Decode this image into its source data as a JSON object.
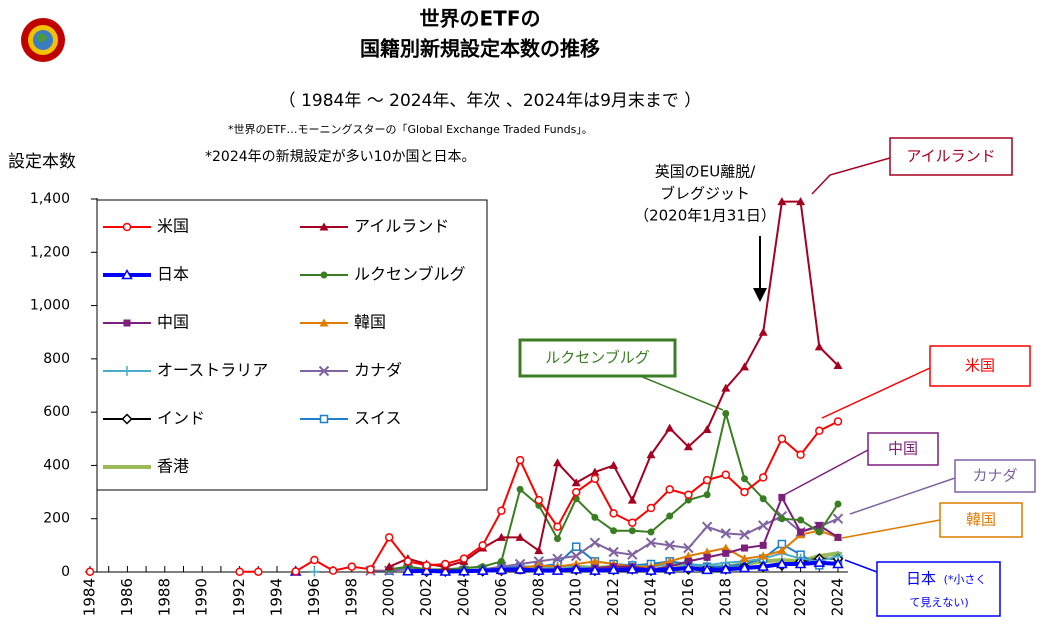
{
  "chart_data": {
    "type": "line",
    "title_lines": [
      "世界のETFの",
      "国籍別新規設定本数の推移"
    ],
    "subtitle": "（ 1984年 ～ 2024年、年次 、2024年は9月末まで ）",
    "notes": [
      "*世界のETF…モーニングスターの「Global Exchange Traded Funds」。",
      "*2024年の新規設定が多い10か国と日本。"
    ],
    "y_label": "設定本数",
    "categories": [
      "1984",
      null,
      "1986",
      null,
      "1988",
      null,
      "1990",
      null,
      "1992",
      null,
      "1994",
      null,
      "1996",
      null,
      "1998",
      null,
      "2000",
      null,
      "2002",
      null,
      "2004",
      null,
      "2006",
      null,
      "2008",
      null,
      "2010",
      null,
      "2012",
      null,
      "2014",
      null,
      "2016",
      null,
      "2018",
      null,
      "2020",
      null,
      "2022",
      null,
      "2024"
    ],
    "ylim": [
      0,
      1400
    ],
    "yticks": [
      0,
      200,
      400,
      600,
      800,
      {
        "value": 1000,
        "label": "1,000"
      },
      {
        "value": 1200,
        "label": "1,200"
      },
      {
        "value": 1400,
        "label": "1,400"
      }
    ],
    "series": [
      {
        "name": "米国",
        "color": "#ff0000",
        "marker": "circle-open",
        "values": [
          1,
          null,
          null,
          null,
          null,
          null,
          null,
          null,
          1,
          1,
          null,
          2,
          45,
          5,
          20,
          10,
          130,
          40,
          25,
          30,
          50,
          100,
          230,
          420,
          270,
          170,
          300,
          350,
          220,
          185,
          240,
          310,
          290,
          345,
          365,
          300,
          355,
          500,
          440,
          530,
          565
        ]
      },
      {
        "name": "アイルランド",
        "color": "#a50021",
        "marker": "triangle",
        "values": [
          null,
          null,
          null,
          null,
          null,
          null,
          null,
          null,
          null,
          null,
          null,
          null,
          null,
          null,
          null,
          null,
          20,
          50,
          30,
          20,
          40,
          90,
          130,
          130,
          80,
          410,
          335,
          375,
          400,
          270,
          440,
          540,
          470,
          535,
          690,
          770,
          900,
          1390,
          1390,
          845,
          775
        ]
      },
      {
        "name": "日本",
        "color": "#0000ff",
        "marker": "triangle-open",
        "width": 4,
        "values": [
          null,
          null,
          null,
          null,
          null,
          null,
          null,
          null,
          null,
          null,
          null,
          2,
          null,
          null,
          null,
          null,
          null,
          3,
          4,
          2,
          3,
          5,
          8,
          10,
          5,
          5,
          10,
          5,
          8,
          10,
          5,
          10,
          15,
          8,
          10,
          15,
          20,
          30,
          30,
          35,
          30
        ]
      },
      {
        "name": "ルクセンブルグ",
        "color": "#3a7d22",
        "marker": "circle",
        "values": [
          null,
          null,
          null,
          null,
          null,
          null,
          null,
          null,
          null,
          null,
          null,
          null,
          null,
          null,
          null,
          null,
          10,
          20,
          10,
          10,
          15,
          20,
          40,
          310,
          250,
          125,
          275,
          205,
          155,
          155,
          150,
          210,
          270,
          290,
          595,
          350,
          275,
          200,
          195,
          150,
          255
        ]
      },
      {
        "name": "中国",
        "color": "#7b1f7b",
        "marker": "square",
        "values": [
          null,
          null,
          null,
          null,
          null,
          null,
          null,
          null,
          null,
          null,
          null,
          null,
          null,
          null,
          null,
          null,
          null,
          null,
          null,
          null,
          1,
          2,
          3,
          5,
          10,
          10,
          10,
          15,
          20,
          20,
          10,
          20,
          40,
          55,
          70,
          90,
          100,
          280,
          150,
          175,
          130
        ]
      },
      {
        "name": "韓国",
        "color": "#e07b00",
        "marker": "triangle",
        "values": [
          null,
          null,
          null,
          null,
          null,
          null,
          null,
          null,
          null,
          null,
          null,
          null,
          null,
          null,
          null,
          null,
          null,
          null,
          5,
          5,
          2,
          10,
          10,
          15,
          25,
          20,
          30,
          40,
          30,
          20,
          20,
          40,
          60,
          75,
          90,
          50,
          60,
          80,
          140,
          155,
          130
        ]
      },
      {
        "name": "オーストラリア",
        "color": "#4bacc6",
        "marker": "plus",
        "values": [
          null,
          null,
          null,
          null,
          null,
          null,
          null,
          null,
          null,
          null,
          null,
          null,
          2,
          null,
          null,
          null,
          null,
          5,
          5,
          5,
          5,
          10,
          10,
          10,
          10,
          20,
          20,
          15,
          20,
          25,
          20,
          30,
          30,
          25,
          35,
          40,
          50,
          70,
          50,
          40,
          60
        ]
      },
      {
        "name": "カナダ",
        "color": "#8064a2",
        "marker": "x",
        "values": [
          null,
          null,
          null,
          null,
          null,
          null,
          null,
          null,
          null,
          null,
          null,
          null,
          null,
          null,
          null,
          5,
          5,
          10,
          10,
          5,
          5,
          10,
          20,
          30,
          40,
          50,
          60,
          110,
          75,
          65,
          110,
          100,
          90,
          170,
          145,
          140,
          175,
          210,
          150,
          170,
          200
        ]
      },
      {
        "name": "インド",
        "color": "#000000",
        "marker": "diamond",
        "values": [
          null,
          null,
          null,
          null,
          null,
          null,
          null,
          null,
          null,
          null,
          null,
          null,
          null,
          null,
          null,
          null,
          null,
          null,
          1,
          2,
          2,
          3,
          5,
          10,
          5,
          10,
          8,
          5,
          8,
          10,
          5,
          8,
          10,
          15,
          10,
          20,
          20,
          25,
          40,
          50,
          50
        ]
      },
      {
        "name": "スイス",
        "color": "#1f7ec8",
        "marker": "square-open",
        "values": [
          null,
          null,
          null,
          null,
          null,
          null,
          null,
          null,
          null,
          null,
          null,
          null,
          null,
          null,
          null,
          null,
          5,
          20,
          10,
          5,
          5,
          10,
          15,
          20,
          20,
          30,
          95,
          40,
          30,
          25,
          30,
          40,
          30,
          20,
          20,
          30,
          50,
          105,
          65,
          25,
          40
        ]
      },
      {
        "name": "香港",
        "color": "#9bbb59",
        "marker": "none",
        "width": 4,
        "values": [
          null,
          null,
          null,
          null,
          null,
          null,
          null,
          null,
          null,
          null,
          null,
          null,
          null,
          null,
          null,
          null,
          null,
          5,
          5,
          3,
          5,
          5,
          10,
          10,
          10,
          20,
          20,
          15,
          20,
          20,
          25,
          30,
          20,
          15,
          20,
          30,
          40,
          45,
          40,
          60,
          70
        ]
      }
    ],
    "annotations": [
      {
        "text": "アイルランド",
        "color": "#a50021"
      },
      {
        "text": "米国",
        "color": "#ff0000"
      },
      {
        "text": "ルクセンブルグ",
        "color": "#3a7d22"
      },
      {
        "text": "中国",
        "color": "#7b1f7b"
      },
      {
        "text": "カナダ",
        "color": "#8064a2"
      },
      {
        "text": "韓国",
        "color": "#e07b00"
      },
      {
        "text": "日本",
        "color": "#0000ff",
        "note_lines": [
          "(*小さく",
          "て見えない)"
        ]
      }
    ],
    "event_lines": [
      "英国のEU離脱/",
      "ブレグジット",
      "（2020年1月31日）"
    ]
  }
}
